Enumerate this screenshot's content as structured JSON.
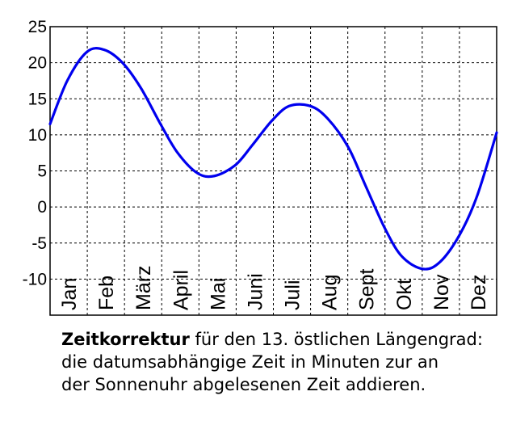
{
  "chart_data": {
    "type": "line",
    "title": "",
    "xlabel": "",
    "ylabel": "",
    "x_unit": "day_of_year",
    "xlim": [
      1,
      365
    ],
    "ylim": [
      -15,
      25
    ],
    "y_ticks": [
      25,
      20,
      15,
      10,
      5,
      0,
      -5,
      -10
    ],
    "grid": true,
    "legend": "none",
    "line_color": "#0000ee",
    "categories": [
      "Jan",
      "Feb",
      "März",
      "April",
      "Mai",
      "Juni",
      "Juli",
      "Aug",
      "Sept",
      "Okt",
      "Nov",
      "Dez"
    ],
    "series": [
      {
        "x": [
          1,
          15,
          31,
          45,
          60,
          75,
          91,
          105,
          121,
          135,
          152,
          166,
          182,
          196,
          213,
          227,
          244,
          258,
          274,
          288,
          305,
          319,
          335,
          349,
          365
        ],
        "values": [
          11.5,
          17.5,
          21.5,
          21.8,
          20.0,
          16.5,
          11.5,
          7.5,
          4.7,
          4.3,
          5.8,
          8.6,
          12.0,
          14.0,
          14.0,
          12.3,
          8.3,
          3.0,
          -3.0,
          -6.9,
          -8.6,
          -7.6,
          -3.8,
          1.5,
          10.3
        ]
      }
    ]
  },
  "caption": {
    "bold": "Zeitkorrektur",
    "line1_rest": " für den 13. östlichen Längengrad:",
    "line2": "die datumsabhängige Zeit in Minuten zur an",
    "line3": "der Sonnenuhr abgelesenen Zeit addieren."
  }
}
